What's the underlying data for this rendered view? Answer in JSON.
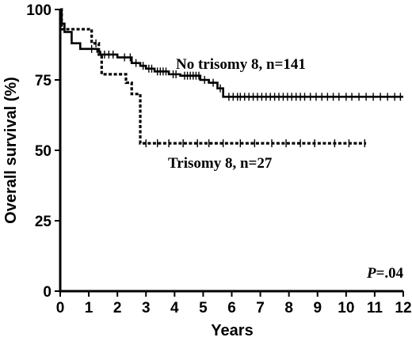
{
  "chart_data": {
    "type": "line",
    "subtype": "kaplan-meier",
    "xlabel": "Years",
    "ylabel": "Overall survival (%)",
    "xlim": [
      0,
      12
    ],
    "ylim": [
      0,
      100
    ],
    "x_ticks": [
      "0",
      "1",
      "2",
      "3",
      "4",
      "5",
      "6",
      "7",
      "8",
      "9",
      "10",
      "11",
      "12"
    ],
    "y_ticks": [
      "0",
      "25",
      "50",
      "75",
      "100"
    ],
    "grid": false,
    "annotation": {
      "italic": "P",
      "rest": "=.04"
    },
    "series": [
      {
        "name": "No trisomy 8, n=141",
        "line_style": "solid",
        "color": "#000000",
        "steps": [
          [
            0,
            100
          ],
          [
            0.05,
            95
          ],
          [
            0.15,
            92
          ],
          [
            0.4,
            88
          ],
          [
            0.7,
            86
          ],
          [
            1.3,
            85
          ],
          [
            1.4,
            84
          ],
          [
            2.0,
            83
          ],
          [
            2.5,
            81
          ],
          [
            2.8,
            80
          ],
          [
            3.0,
            79
          ],
          [
            3.3,
            78
          ],
          [
            3.8,
            77
          ],
          [
            4.2,
            76.5
          ],
          [
            4.9,
            75
          ],
          [
            5.2,
            74
          ],
          [
            5.5,
            72
          ],
          [
            5.7,
            69
          ],
          [
            12,
            69
          ]
        ],
        "censor_x": [
          1.1,
          1.55,
          1.7,
          1.85,
          2.25,
          2.45,
          2.65,
          2.9,
          3.1,
          3.2,
          3.4,
          3.5,
          3.6,
          3.7,
          3.95,
          4.05,
          4.35,
          4.45,
          4.55,
          4.65,
          4.75,
          4.85,
          5.05,
          5.35,
          5.6,
          5.9,
          6.05,
          6.2,
          6.3,
          6.45,
          6.6,
          6.75,
          6.9,
          7.05,
          7.2,
          7.35,
          7.5,
          7.65,
          7.8,
          7.95,
          8.1,
          8.25,
          8.4,
          8.55,
          8.75,
          8.95,
          9.15,
          9.35,
          9.55,
          9.75,
          10.0,
          10.2,
          10.45,
          10.7,
          10.95,
          11.2,
          11.45,
          11.7,
          11.9
        ]
      },
      {
        "name": "Trisomy 8, n=27",
        "line_style": "dotted",
        "color": "#000000",
        "steps": [
          [
            0,
            100
          ],
          [
            0.05,
            93
          ],
          [
            1.1,
            88
          ],
          [
            1.35,
            84
          ],
          [
            1.45,
            77
          ],
          [
            2.3,
            74
          ],
          [
            2.5,
            70
          ],
          [
            2.8,
            52.5
          ],
          [
            10.7,
            52.5
          ]
        ],
        "censor_x": [
          1.25,
          3.0,
          3.4,
          3.8,
          4.3,
          4.8,
          5.2,
          5.7,
          6.3,
          6.8,
          7.4,
          7.9,
          8.4,
          8.9,
          9.6,
          10.1,
          10.65
        ]
      }
    ]
  }
}
